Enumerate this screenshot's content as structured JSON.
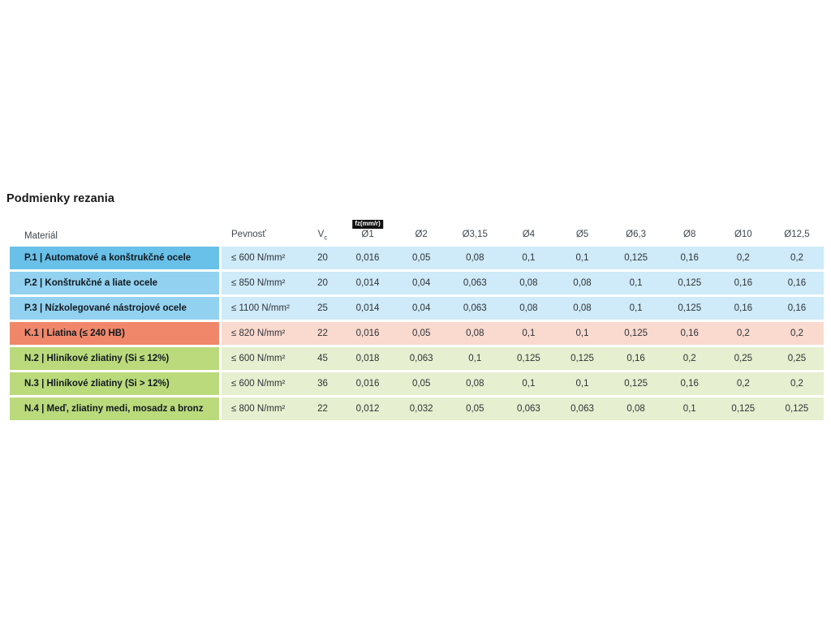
{
  "page": {
    "title": "Podmienky rezania",
    "background": "#ffffff"
  },
  "table": {
    "fz_badge": "fz(mm/r)",
    "headers": {
      "material": "Materiál",
      "strength": "Pevnosť",
      "vc_main": "V",
      "vc_sub": "c",
      "diameters": [
        "Ø1",
        "Ø2",
        "Ø3,15",
        "Ø4",
        "Ø5",
        "Ø6,3",
        "Ø8",
        "Ø10",
        "Ø12,5"
      ]
    },
    "colors": {
      "steel_material_highlight": "#69c0e8",
      "steel_material": "#92d1f0",
      "steel_values": "#cfeaf8",
      "cast_iron_material": "#f0876b",
      "cast_iron_values": "#fad9ce",
      "nonferrous_material": "#bbda7c",
      "nonferrous_values": "#e6efcf",
      "badge_bg": "#111111",
      "badge_text": "#ffffff"
    },
    "rows": [
      {
        "material": "P.1 | Automatové a konštrukčné ocele",
        "strength": "≤ 600 N/mm²",
        "vc": "20",
        "feeds": [
          "0,016",
          "0,05",
          "0,08",
          "0,1",
          "0,1",
          "0,125",
          "0,16",
          "0,2",
          "0,2"
        ]
      },
      {
        "material": "P.2 | Konštrukčné a liate ocele",
        "strength": "≤ 850 N/mm²",
        "vc": "20",
        "feeds": [
          "0,014",
          "0,04",
          "0,063",
          "0,08",
          "0,08",
          "0,1",
          "0,125",
          "0,16",
          "0,16"
        ]
      },
      {
        "material": "P.3 | Nízkolegované nástrojové ocele",
        "strength": "≤ 1100 N/mm²",
        "vc": "25",
        "feeds": [
          "0,014",
          "0,04",
          "0,063",
          "0,08",
          "0,08",
          "0,1",
          "0,125",
          "0,16",
          "0,16"
        ]
      },
      {
        "material": "K.1 | Liatina (≤ 240 HB)",
        "strength": "≤ 820 N/mm²",
        "vc": "22",
        "feeds": [
          "0,016",
          "0,05",
          "0,08",
          "0,1",
          "0,1",
          "0,125",
          "0,16",
          "0,2",
          "0,2"
        ]
      },
      {
        "material": "N.2 | Hliníkové zliatiny (Si ≤ 12%)",
        "strength": "≤ 600 N/mm²",
        "vc": "45",
        "feeds": [
          "0,018",
          "0,063",
          "0,1",
          "0,125",
          "0,125",
          "0,16",
          "0,2",
          "0,25",
          "0,25"
        ]
      },
      {
        "material": "N.3 | Hliníkové zliatiny (Si > 12%)",
        "strength": "≤ 600 N/mm²",
        "vc": "36",
        "feeds": [
          "0,016",
          "0,05",
          "0,08",
          "0,1",
          "0,1",
          "0,125",
          "0,16",
          "0,2",
          "0,2"
        ]
      },
      {
        "material": "N.4 | Meď, zliatiny medi, mosadz a bronz",
        "strength": "≤ 800 N/mm²",
        "vc": "22",
        "feeds": [
          "0,012",
          "0,032",
          "0,05",
          "0,063",
          "0,063",
          "0,08",
          "0,1",
          "0,125",
          "0,125"
        ]
      }
    ]
  }
}
